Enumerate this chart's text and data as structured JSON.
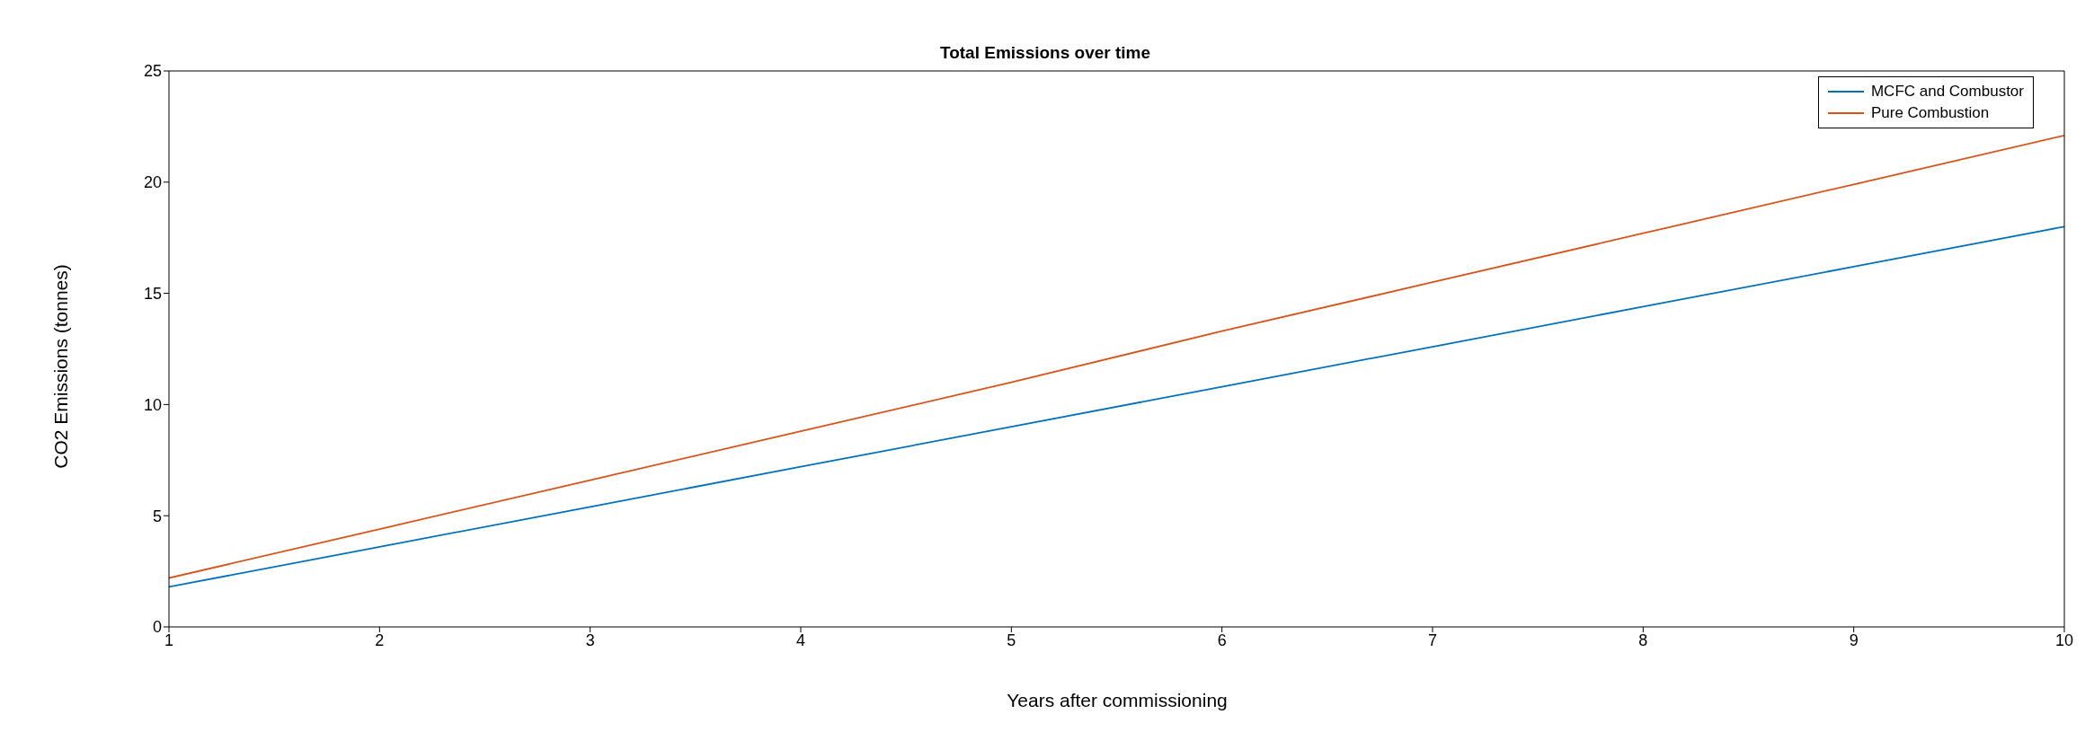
{
  "chart_data": {
    "type": "line",
    "title": "Total Emissions over time",
    "xlabel": "Years after commissioning",
    "ylabel": "CO2 Emissions (tonnes)",
    "x": [
      1,
      2,
      3,
      4,
      5,
      6,
      7,
      8,
      9,
      10
    ],
    "series": [
      {
        "name": "MCFC and Combustor",
        "color": "#0072bd",
        "values": [
          1.8,
          3.6,
          5.4,
          7.2,
          9.0,
          10.8,
          12.6,
          14.4,
          16.2,
          18.0
        ]
      },
      {
        "name": "Pure Combustion",
        "color": "#d95319",
        "values": [
          2.2,
          4.4,
          6.6,
          8.8,
          11.0,
          13.3,
          15.5,
          17.7,
          19.9,
          22.1
        ]
      }
    ],
    "xlim": [
      1,
      10
    ],
    "xticks": [
      1,
      2,
      3,
      4,
      5,
      6,
      7,
      8,
      9,
      10
    ],
    "ylim": [
      0,
      25
    ],
    "yticks": [
      0,
      5,
      10,
      15,
      20,
      25
    ],
    "grid": false,
    "legend": "top right",
    "marker": "none",
    "line_style": "solid"
  }
}
